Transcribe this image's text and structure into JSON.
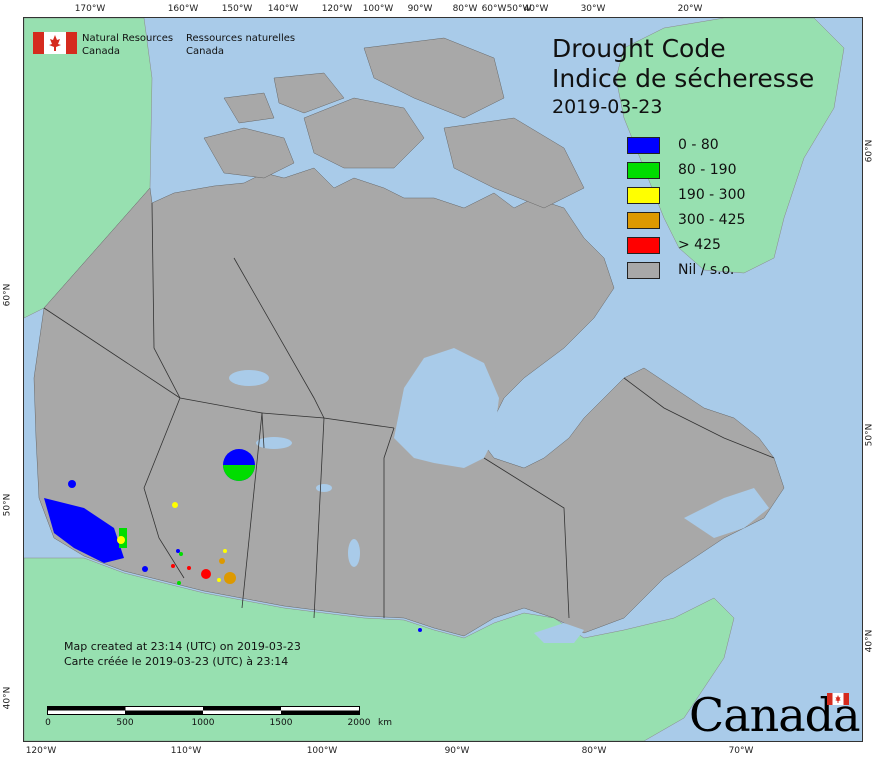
{
  "org": {
    "en_line1": "Natural Resources",
    "en_line2": "Canada",
    "fr_line1": "Ressources naturelles",
    "fr_line2": "Canada"
  },
  "title": {
    "en": "Drought Code",
    "fr": "Indice de sécheresse",
    "date": "2019-03-23"
  },
  "legend": [
    {
      "label": "0 - 80",
      "color": "#0000ff"
    },
    {
      "label": "80 - 190",
      "color": "#00dd00"
    },
    {
      "label": "190 - 300",
      "color": "#ffff00"
    },
    {
      "label": "300 - 425",
      "color": "#dd9900"
    },
    {
      "label": "> 425",
      "color": "#ff0000"
    },
    {
      "label": "Nil / s.o.",
      "color": "#a8a8a8"
    }
  ],
  "notes": {
    "en": "Map created at 23:14 (UTC) on 2019-03-23",
    "fr": "Carte créée le 2019-03-23 (UTC) à 23:14"
  },
  "scale": {
    "labels": [
      "0",
      "500",
      "1000",
      "1500",
      "2000"
    ],
    "unit": "km"
  },
  "wordmark": "Canada",
  "ticks": {
    "top": [
      "170°W",
      "160°W",
      "150°W",
      "140°W",
      "120°W",
      "100°W",
      "90°W",
      "80°W",
      "60°W",
      "50°W",
      "40°W",
      "30°W",
      "20°W"
    ],
    "bottom": [
      "120°W",
      "110°W",
      "100°W",
      "90°W",
      "80°W",
      "70°W"
    ],
    "left": [
      "60°N",
      "50°N",
      "40°N"
    ],
    "right": [
      "60°N",
      "50°N",
      "40°N"
    ]
  },
  "colors": {
    "ocean": "#a9cbe9",
    "foreign_land": "#97e0b0",
    "canada_nil": "#a8a8a8",
    "lakes": "#a9cbe9"
  }
}
